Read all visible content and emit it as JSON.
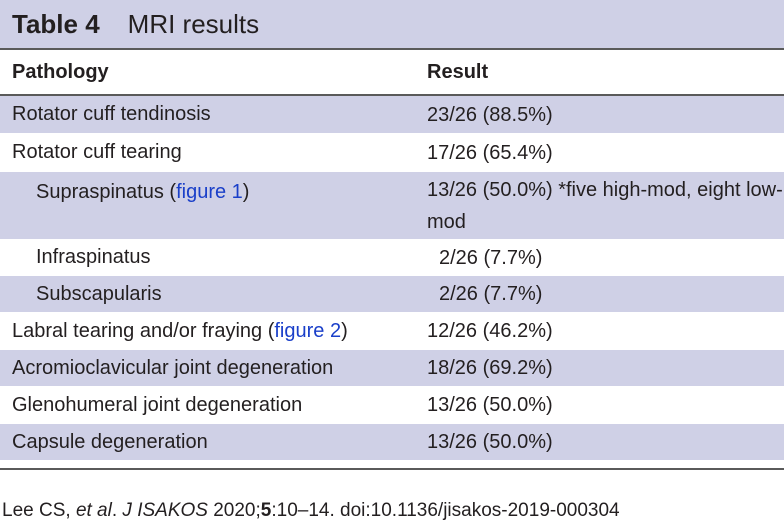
{
  "table": {
    "label": "Table 4",
    "title": "MRI results",
    "headers": {
      "pathology": "Pathology",
      "result": "Result"
    },
    "rows": [
      {
        "pathology": "Rotator cuff tendinosis",
        "result": "23/26 (88.5%)"
      },
      {
        "pathology": "Rotator cuff tearing",
        "result": "17/26 (65.4%)"
      },
      {
        "pathology_prefix": "Supraspinatus (",
        "pathology_link": "figure 1",
        "pathology_suffix": ")",
        "result": "13/26 (50.0%) *five high-mod, eight low-mod"
      },
      {
        "pathology": "Infraspinatus",
        "result": "2/26 (7.7%)"
      },
      {
        "pathology": "Subscapularis",
        "result": "2/26 (7.7%)"
      },
      {
        "pathology_prefix": "Labral tearing and/or fraying (",
        "pathology_link": "figure 2",
        "pathology_suffix": ")",
        "result": "12/26 (46.2%)"
      },
      {
        "pathology": "Acromioclavicular joint degeneration",
        "result": "18/26 (69.2%)"
      },
      {
        "pathology": "Glenohumeral joint degeneration",
        "result": "13/26 (50.0%)"
      },
      {
        "pathology": "Capsule degeneration",
        "result": "13/26 (50.0%)"
      }
    ]
  },
  "citation": {
    "authors": "Lee CS, ",
    "etal": "et al",
    "dot": ". ",
    "journal": "J ISAKOS",
    "year": " 2020;",
    "volume": "5",
    "rest": ":10–14. doi:10.1136/jisakos-2019-000304"
  },
  "colors": {
    "band": "#cfd0e6",
    "link": "#1a3fc9",
    "rule": "#5a5a5a"
  }
}
